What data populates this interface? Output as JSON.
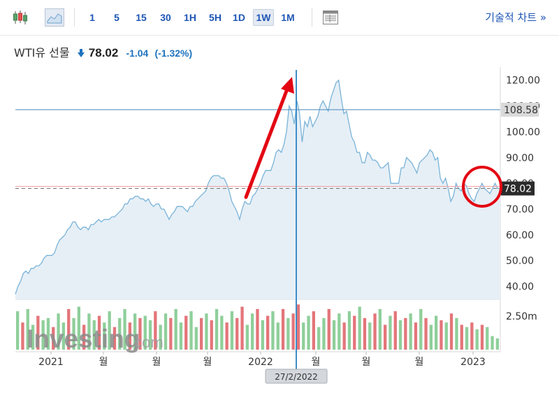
{
  "toolbar": {
    "icons": [
      "candlestick-icon",
      "area-chart-icon",
      "table-icon"
    ],
    "intervals": [
      "1",
      "5",
      "15",
      "30",
      "1H",
      "5H",
      "1D",
      "1W",
      "1M"
    ],
    "selected_interval": "1W",
    "technical_chart_link": "기술적 차트 »"
  },
  "quote": {
    "name": "WTI유 선물",
    "direction_icon": "down-arrow-icon",
    "price": "78.02",
    "change": "-1.04",
    "change_pct": "(-1.32%)"
  },
  "colors": {
    "line": "#7ab3d8",
    "area": "#e6eff6",
    "crosshair": "#3f8ec9",
    "annotation": "#e30613",
    "vol_up": "#8fcf9b",
    "vol_down": "#e3757a"
  },
  "chart_data": {
    "type": "area",
    "series": [
      {
        "values": [
          37,
          40,
          42,
          45,
          46,
          45,
          47,
          47,
          48,
          48,
          49,
          51,
          52,
          52,
          52,
          53,
          56,
          58,
          59,
          60,
          62,
          63,
          65,
          65,
          63,
          62,
          63,
          63,
          62,
          64,
          64,
          65,
          66,
          65,
          66,
          66,
          66,
          67,
          67,
          68,
          69,
          70,
          72,
          72,
          74,
          74,
          75,
          75,
          74,
          74,
          73,
          74,
          72,
          71,
          72,
          72,
          70,
          70,
          68,
          66,
          68,
          69,
          71,
          71,
          71,
          70,
          69,
          71,
          71,
          73,
          74,
          75,
          76,
          77,
          80,
          82,
          83,
          83,
          83,
          82,
          82,
          80,
          77,
          73,
          71,
          69,
          66,
          70,
          73,
          72,
          72,
          75,
          76,
          78,
          80,
          83,
          85,
          85,
          85,
          88,
          92,
          93,
          92,
          95,
          100,
          110,
          108,
          103,
          112,
          107,
          96,
          104,
          102,
          106,
          102,
          104,
          106,
          110,
          112,
          110,
          108,
          113,
          116,
          119,
          120,
          113,
          107,
          108,
          103,
          98,
          96,
          92,
          92,
          88,
          88,
          92,
          91,
          89,
          89,
          88,
          86,
          86,
          87,
          88,
          80,
          80,
          80,
          80,
          86,
          86,
          90,
          89,
          88,
          86,
          84,
          88,
          89,
          90,
          91,
          93,
          92,
          89,
          90,
          82,
          80,
          82,
          78,
          73,
          75,
          80,
          78,
          77,
          80,
          79,
          76,
          74,
          73,
          76,
          78,
          80,
          78,
          77,
          76,
          78,
          80,
          78,
          78
        ]
      }
    ],
    "x_axis_labels": [
      "2021",
      "월",
      "월",
      "월",
      "2022",
      "월",
      "월",
      "월",
      "2023"
    ],
    "y_axis": {
      "min": 35,
      "max": 124,
      "ticks": [
        "40.00",
        "50.00",
        "60.00",
        "70.00",
        "80.00",
        "90.00",
        "100.00",
        "110.00",
        "120.00"
      ]
    },
    "horizontal_line": 108.58,
    "horizontal_line_label": "108.58",
    "current_line": 78.02,
    "current_label": "78.02",
    "crosshair_date": "27/2/2022",
    "crosshair_index": 104,
    "volume": {
      "label": "2.50m",
      "bars": [
        {
          "v": 0.85,
          "up": 1
        },
        {
          "v": 0.6,
          "up": 0
        },
        {
          "v": 0.9,
          "up": 1
        },
        {
          "v": 0.55,
          "up": 1
        },
        {
          "v": 0.75,
          "up": 0
        },
        {
          "v": 0.65,
          "up": 1
        },
        {
          "v": 0.7,
          "up": 1
        },
        {
          "v": 0.5,
          "up": 0
        },
        {
          "v": 0.8,
          "up": 1
        },
        {
          "v": 0.6,
          "up": 1
        },
        {
          "v": 0.9,
          "up": 0
        },
        {
          "v": 0.7,
          "up": 1
        },
        {
          "v": 0.95,
          "up": 1
        },
        {
          "v": 0.55,
          "up": 0
        },
        {
          "v": 0.8,
          "up": 1
        },
        {
          "v": 0.65,
          "up": 1
        },
        {
          "v": 0.75,
          "up": 0
        },
        {
          "v": 0.6,
          "up": 1
        },
        {
          "v": 0.85,
          "up": 1
        },
        {
          "v": 0.5,
          "up": 0
        },
        {
          "v": 0.7,
          "up": 1
        },
        {
          "v": 0.9,
          "up": 1
        },
        {
          "v": 0.6,
          "up": 0
        },
        {
          "v": 0.8,
          "up": 1
        },
        {
          "v": 0.7,
          "up": 0
        },
        {
          "v": 0.75,
          "up": 1
        },
        {
          "v": 0.65,
          "up": 1
        },
        {
          "v": 0.85,
          "up": 0
        },
        {
          "v": 0.55,
          "up": 1
        },
        {
          "v": 0.8,
          "up": 1
        },
        {
          "v": 0.7,
          "up": 0
        },
        {
          "v": 0.9,
          "up": 1
        },
        {
          "v": 0.6,
          "up": 1
        },
        {
          "v": 0.75,
          "up": 0
        },
        {
          "v": 0.85,
          "up": 1
        },
        {
          "v": 0.5,
          "up": 1
        },
        {
          "v": 0.7,
          "up": 0
        },
        {
          "v": 0.8,
          "up": 1
        },
        {
          "v": 0.65,
          "up": 0
        },
        {
          "v": 0.9,
          "up": 1
        },
        {
          "v": 0.75,
          "up": 1
        },
        {
          "v": 0.6,
          "up": 0
        },
        {
          "v": 0.85,
          "up": 1
        },
        {
          "v": 0.7,
          "up": 0
        },
        {
          "v": 0.95,
          "up": 0
        },
        {
          "v": 0.55,
          "up": 1
        },
        {
          "v": 0.8,
          "up": 1
        },
        {
          "v": 0.9,
          "up": 0
        },
        {
          "v": 0.65,
          "up": 1
        },
        {
          "v": 0.75,
          "up": 0
        },
        {
          "v": 0.85,
          "up": 1
        },
        {
          "v": 0.6,
          "up": 1
        },
        {
          "v": 0.9,
          "up": 0
        },
        {
          "v": 0.7,
          "up": 1
        },
        {
          "v": 0.8,
          "up": 0
        },
        {
          "v": 1.0,
          "up": 0
        },
        {
          "v": 0.6,
          "up": 1
        },
        {
          "v": 0.75,
          "up": 1
        },
        {
          "v": 0.85,
          "up": 0
        },
        {
          "v": 0.5,
          "up": 1
        },
        {
          "v": 0.7,
          "up": 1
        },
        {
          "v": 0.9,
          "up": 0
        },
        {
          "v": 0.65,
          "up": 1
        },
        {
          "v": 0.8,
          "up": 1
        },
        {
          "v": 0.6,
          "up": 0
        },
        {
          "v": 0.85,
          "up": 1
        },
        {
          "v": 0.75,
          "up": 0
        },
        {
          "v": 0.95,
          "up": 1
        },
        {
          "v": 0.7,
          "up": 0
        },
        {
          "v": 0.6,
          "up": 1
        },
        {
          "v": 0.8,
          "up": 0
        },
        {
          "v": 0.9,
          "up": 1
        },
        {
          "v": 0.55,
          "up": 0
        },
        {
          "v": 0.75,
          "up": 1
        },
        {
          "v": 0.85,
          "up": 0
        },
        {
          "v": 0.65,
          "up": 1
        },
        {
          "v": 0.7,
          "up": 0
        },
        {
          "v": 0.8,
          "up": 1
        },
        {
          "v": 0.6,
          "up": 0
        },
        {
          "v": 0.9,
          "up": 1
        },
        {
          "v": 0.7,
          "up": 0
        },
        {
          "v": 0.55,
          "up": 1
        },
        {
          "v": 0.75,
          "up": 1
        },
        {
          "v": 0.65,
          "up": 0
        },
        {
          "v": 0.6,
          "up": 1
        },
        {
          "v": 0.8,
          "up": 0
        },
        {
          "v": 0.7,
          "up": 1
        },
        {
          "v": 0.55,
          "up": 0
        },
        {
          "v": 0.5,
          "up": 1
        },
        {
          "v": 0.6,
          "up": 0
        },
        {
          "v": 0.45,
          "up": 1
        },
        {
          "v": 0.55,
          "up": 0
        },
        {
          "v": 0.5,
          "up": 1
        },
        {
          "v": 0.3,
          "up": 1
        },
        {
          "v": 0.25,
          "up": 1
        }
      ]
    },
    "watermark": "Investing.com"
  }
}
